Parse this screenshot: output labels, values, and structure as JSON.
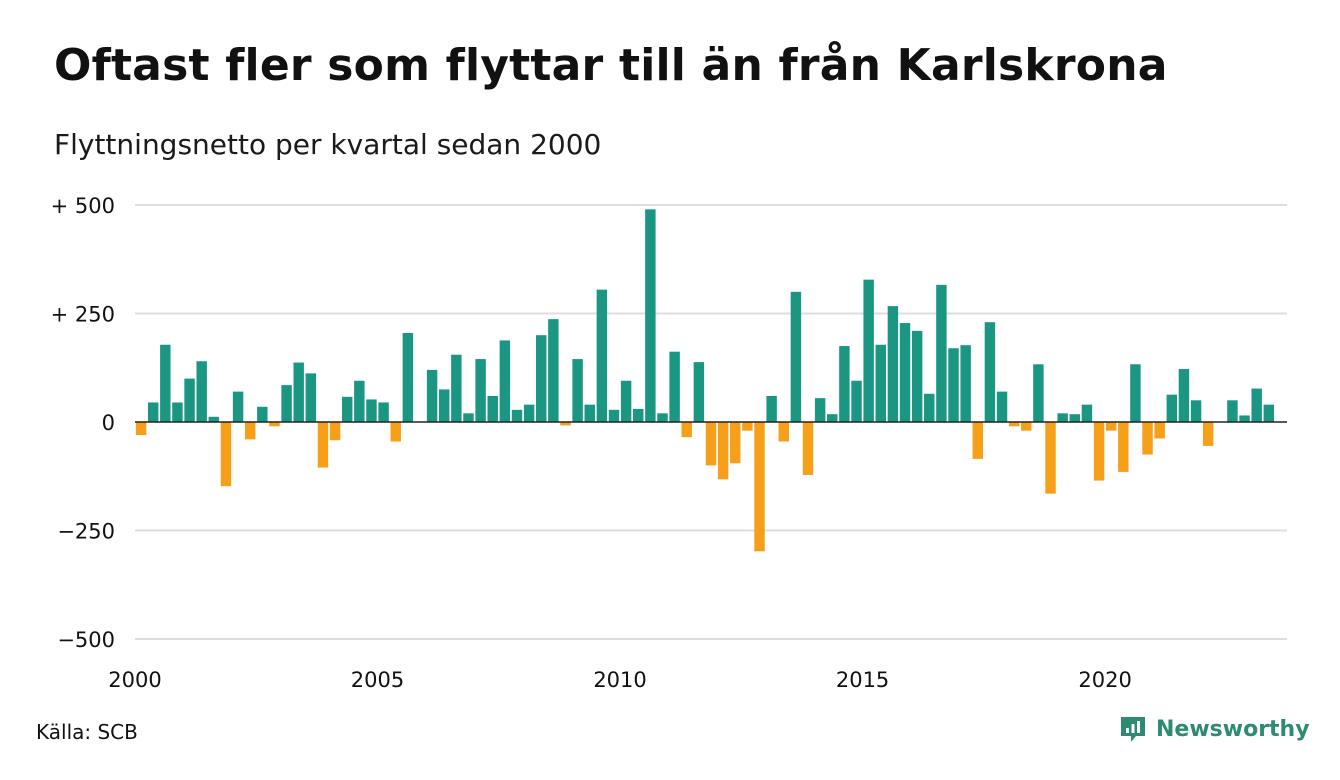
{
  "title": "Oftast fler som flyttar till än från Karlskrona",
  "subtitle": "Flyttningsnetto per kvartal sedan 2000",
  "source": "Källa: SCB",
  "brand": "Newsworthy",
  "colors": {
    "positive": "#1a9683",
    "negative": "#f6a01a",
    "grid": "#dddddd",
    "axis": "#222222",
    "brand": "#2e8b73"
  },
  "icons": {
    "brand_logo": "newsworthy-chart-bubble-icon"
  },
  "chart_data": {
    "type": "bar",
    "title": "Oftast fler som flyttar till än från Karlskrona",
    "subtitle": "Flyttningsnetto per kvartal sedan 2000",
    "xlabel": "",
    "ylabel": "",
    "ylim": [
      -500,
      500
    ],
    "yticks": [
      500,
      250,
      0,
      -250,
      -500
    ],
    "ytick_labels": [
      "+ 500",
      "+ 250",
      "0",
      "−250",
      "−500"
    ],
    "xlim": [
      2000,
      2023.75
    ],
    "xticks": [
      2000,
      2005,
      2010,
      2015,
      2020
    ],
    "xtick_labels": [
      "2000",
      "2005",
      "2010",
      "2015",
      "2020"
    ],
    "grid": true,
    "legend": "none",
    "quarters_start": "2000 Q1",
    "values": [
      -30,
      45,
      178,
      45,
      100,
      140,
      12,
      -148,
      70,
      -40,
      35,
      -10,
      85,
      137,
      112,
      -105,
      -42,
      58,
      95,
      52,
      45,
      -45,
      205,
      0,
      120,
      75,
      155,
      20,
      145,
      60,
      188,
      28,
      40,
      200,
      237,
      -8,
      145,
      40,
      305,
      28,
      95,
      30,
      490,
      20,
      162,
      -35,
      138,
      -100,
      -132,
      -95,
      -20,
      -298,
      60,
      -45,
      300,
      -122,
      55,
      18,
      175,
      95,
      328,
      178,
      267,
      228,
      210,
      65,
      316,
      170,
      177,
      -85,
      230,
      70,
      -10,
      -20,
      133,
      -165,
      20,
      18,
      40,
      -135,
      -20,
      -115,
      133,
      -75,
      -38,
      63,
      122,
      50,
      -55,
      0,
      50,
      15,
      77,
      40
    ]
  }
}
